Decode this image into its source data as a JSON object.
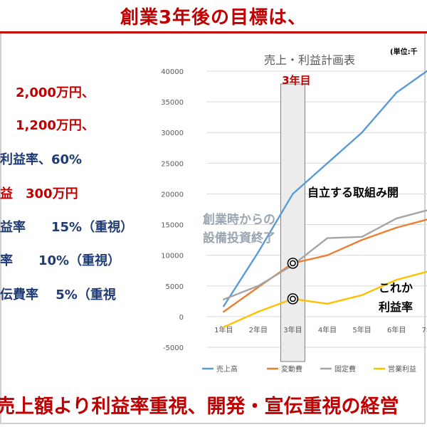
{
  "header": {
    "title": "創業3年後の目標は、"
  },
  "left_items": [
    {
      "text": "2,000万円、",
      "color": "#c00000"
    },
    {
      "text": "1,200万円、",
      "color": "#c00000"
    },
    {
      "text": "利益率、60%",
      "color": "#1f3b73"
    },
    {
      "text": "益　300万円",
      "color": "#c00000"
    },
    {
      "text": "益率　　15%（重視）",
      "color": "#1f3b73"
    },
    {
      "text": "率　　10%（重視）",
      "color": "#1f3b73"
    },
    {
      "text": "伝費率　 5%（重視",
      "color": "#1f3b73"
    }
  ],
  "footer": {
    "text": "売上額より利益率重視、開発・宣伝重視の経営"
  },
  "chart_data": {
    "type": "line",
    "title": "売上・利益計画表",
    "unit_note": "(単位:千",
    "categories": [
      "1年目",
      "2年目",
      "3年目",
      "4年目",
      "5年目",
      "6年目",
      "7年目"
    ],
    "ylim": [
      -5000,
      40000
    ],
    "yticks": [
      40000,
      35000,
      30000,
      25000,
      20000,
      15000,
      10000,
      5000,
      0,
      -5000
    ],
    "grid": true,
    "legend_position": "bottom",
    "highlight": {
      "category": "3年目",
      "label": "3年目"
    },
    "series": [
      {
        "name": "売上高",
        "color": "#5b9bd5",
        "values": [
          1700,
          10500,
          20000,
          25000,
          30000,
          36500,
          40500
        ]
      },
      {
        "name": "変動費",
        "color": "#ed7d31",
        "values": [
          800,
          4800,
          8700,
          10000,
          12500,
          14500,
          16000
        ]
      },
      {
        "name": "固定費",
        "color": "#a5a5a5",
        "values": [
          2800,
          5000,
          8400,
          12800,
          13000,
          16000,
          17500
        ]
      },
      {
        "name": "営業利益",
        "color": "#ffc000",
        "values": [
          -1700,
          800,
          2900,
          2100,
          3500,
          6000,
          7500
        ]
      }
    ],
    "annotations": [
      {
        "id": "setup",
        "lines": [
          "創業時からの",
          "設備投資終了"
        ],
        "color": "#9aa6b2"
      },
      {
        "id": "independent",
        "lines": [
          "自立する取組み開"
        ],
        "color": "#000000"
      },
      {
        "id": "profit",
        "lines": [
          "これか",
          "利益率"
        ],
        "color": "#000000"
      }
    ]
  }
}
